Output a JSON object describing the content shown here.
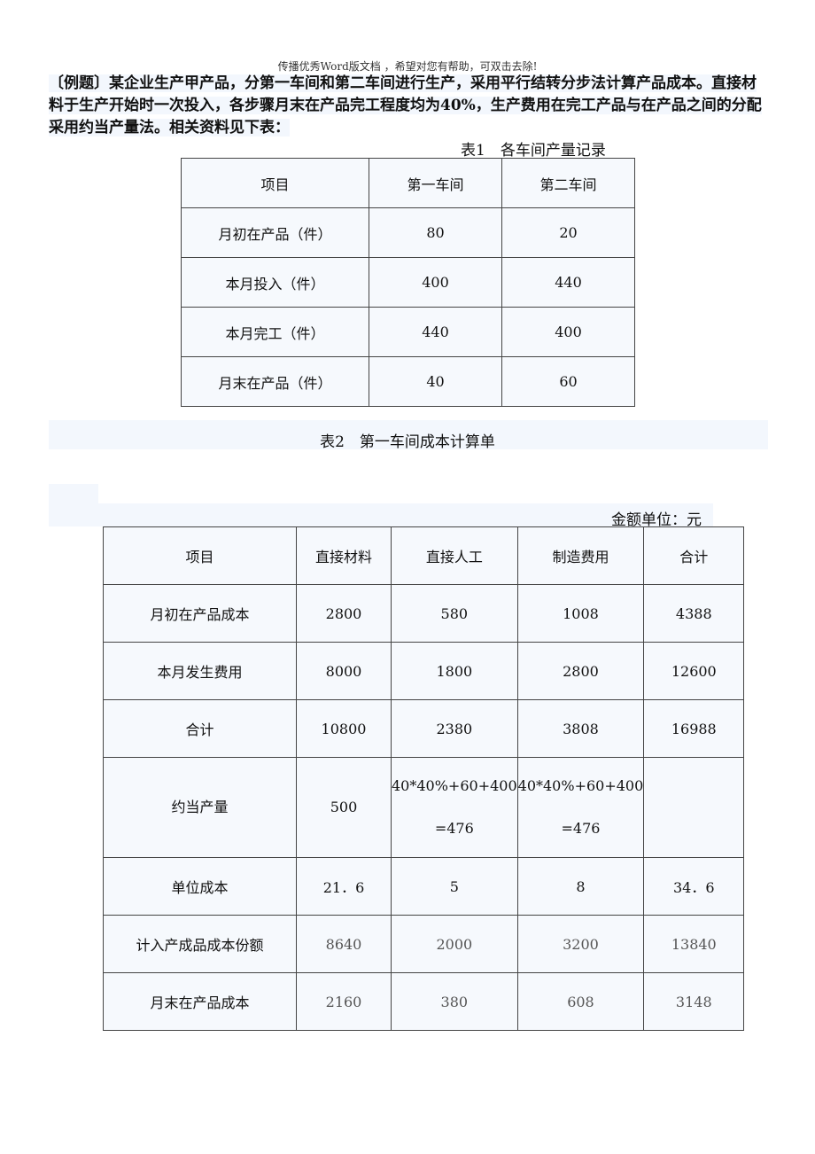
{
  "watermark": "传播优秀Word版文档 ，希望对您有帮助，可双击去除!",
  "intro": "〔例题〕某企业生产甲产品，分第一车间和第二车间进行生产，采用平行结转分步法计算产品成本。直接材料于生产开始时一次投入，各步骤月末在产品完工程度均为40%，生产费用在完工产品与在产品之间的分配采用约当产量法。相关资料见下表：",
  "table1": {
    "caption": "表1　各车间产量记录",
    "headers": [
      "项目",
      "第一车间",
      "第二车间"
    ],
    "rows": [
      [
        "月初在产品（件）",
        "80",
        "20"
      ],
      [
        "本月投入（件）",
        "400",
        "440"
      ],
      [
        "本月完工（件）",
        "440",
        "400"
      ],
      [
        "月末在产品（件）",
        "40",
        "60"
      ]
    ]
  },
  "table2": {
    "caption": "表2　第一车间成本计算单",
    "unit": "金额单位：元",
    "headers": [
      "项目",
      "直接材料",
      "直接人工",
      "制造费用",
      "合计"
    ],
    "rows": [
      [
        "月初在产品成本",
        "2800",
        "580",
        "1008",
        "4388"
      ],
      [
        "本月发生费用",
        "8000",
        "1800",
        "2800",
        "12600"
      ],
      [
        "合计",
        "10800",
        "2380",
        "3808",
        "16988"
      ],
      [
        "约当产量",
        "500",
        "40*40%+60+400 =476",
        "40*40%+60+400 =476",
        ""
      ],
      [
        "单位成本",
        "21．6",
        "5",
        "8",
        "34．6"
      ],
      [
        "计入产成品成本份额",
        "8640",
        "2000",
        "3200",
        "13840"
      ],
      [
        "月末在产品成本",
        "2160",
        "380",
        "608",
        "3148"
      ]
    ]
  }
}
